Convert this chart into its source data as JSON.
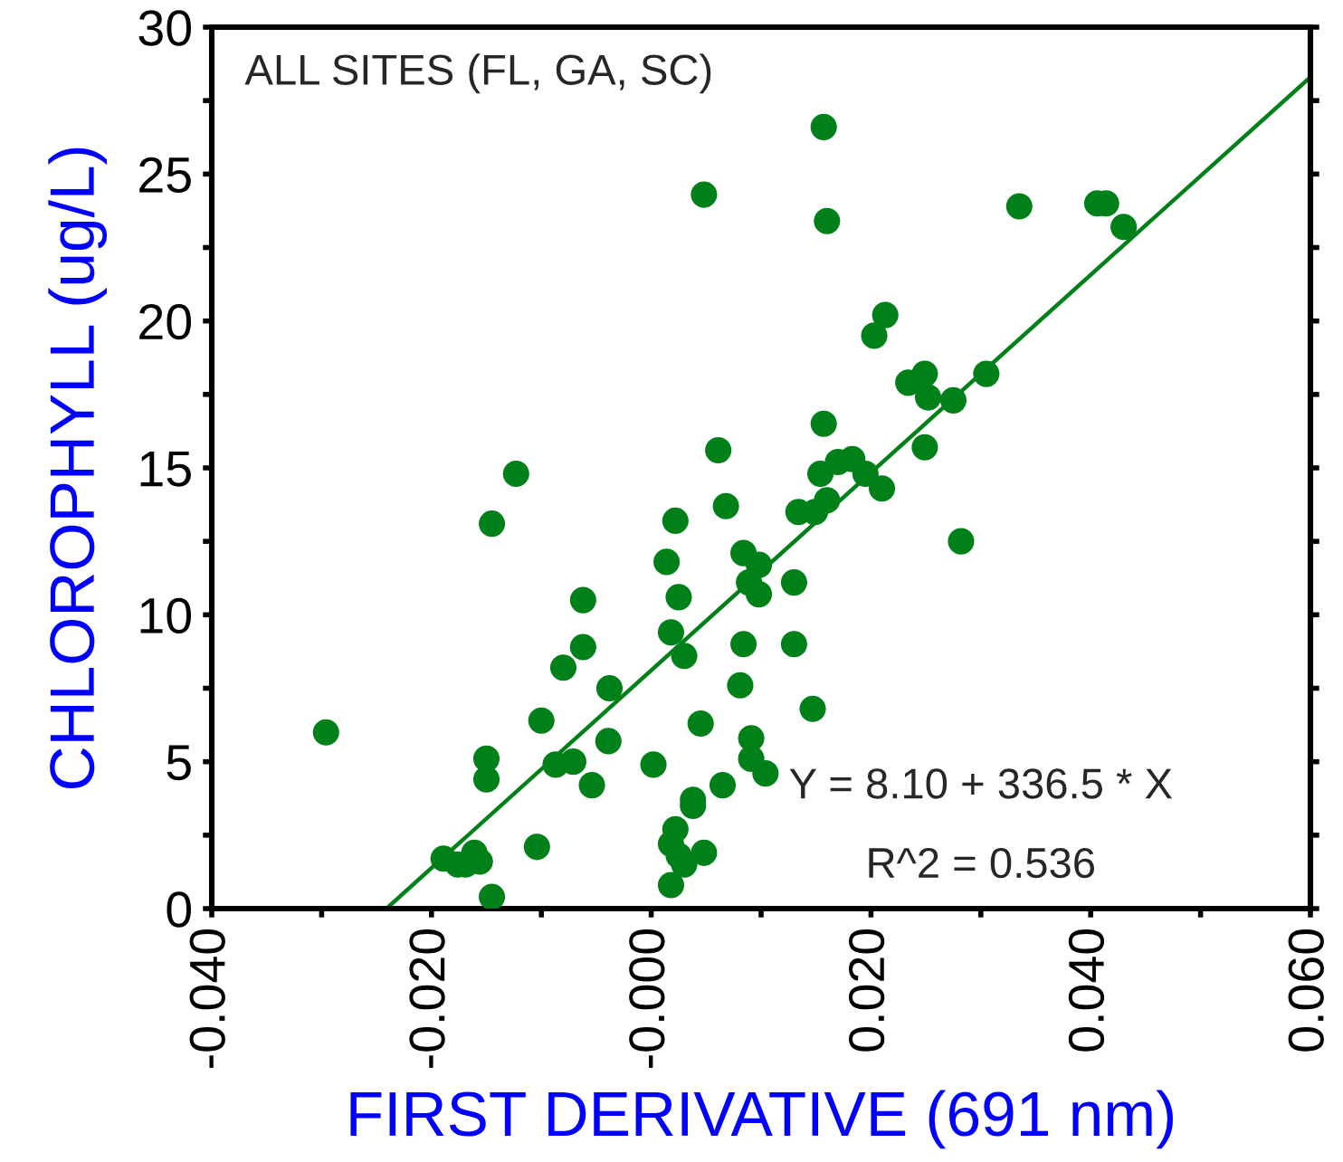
{
  "chart_data": {
    "type": "scatter",
    "xlabel": "FIRST DERIVATIVE (691 nm)",
    "ylabel": "CHLOROPHYLL (ug/L)",
    "annotations": [
      "ALL SITES (FL, GA, SC)",
      "Y = 8.10 + 336.5 * X",
      "R^2 = 0.536"
    ],
    "xlim": [
      -0.04,
      0.06
    ],
    "ylim": [
      0,
      30
    ],
    "xticks": [
      {
        "value": -0.04,
        "label": "-0.040"
      },
      {
        "value": -0.03,
        "label": null
      },
      {
        "value": -0.02,
        "label": "-0.020"
      },
      {
        "value": -0.01,
        "label": null
      },
      {
        "value": 0,
        "label": "-0.000"
      },
      {
        "value": 0.01,
        "label": null
      },
      {
        "value": 0.02,
        "label": "0.020"
      },
      {
        "value": 0.03,
        "label": null
      },
      {
        "value": 0.04,
        "label": "0.040"
      },
      {
        "value": 0.05,
        "label": null
      },
      {
        "value": 0.06,
        "label": "0.060"
      }
    ],
    "yticks": [
      0,
      {
        "value": 2.5,
        "label": null
      },
      5,
      {
        "value": 7.5,
        "label": null
      },
      10,
      {
        "value": 12.5,
        "label": null
      },
      15,
      {
        "value": 17.5,
        "label": null
      },
      20,
      {
        "value": 22.5,
        "label": null
      },
      25,
      {
        "value": 27.5,
        "label": null
      },
      30
    ],
    "grid": false,
    "legend": false,
    "series": [
      {
        "marker": "circle",
        "color": "#008018",
        "x": [
          -0.0123,
          -0.0145,
          -0.0062,
          -0.0062,
          -0.008,
          -0.0038,
          -0.01,
          -0.0296,
          -0.015,
          -0.015,
          -0.0087,
          -0.0071,
          -0.0039,
          -0.0054,
          -0.0104,
          -0.0189,
          -0.0176,
          -0.0169,
          -0.0161,
          -0.0156,
          -0.0145,
          0.0002,
          0.0014,
          0.0022,
          0.0025,
          0.0018,
          0.003,
          0.0068,
          0.0061,
          0.0045,
          0.0065,
          0.0038,
          0.0038,
          0.0022,
          0.0018,
          0.0025,
          0.003,
          0.0048,
          0.0018,
          0.0084,
          0.0098,
          0.0089,
          0.0098,
          0.0084,
          0.0081,
          0.0091,
          0.0091,
          0.0104,
          0.0048,
          0.0157,
          0.016,
          0.0335,
          0.0406,
          0.0414,
          0.043,
          0.0213,
          0.0203,
          0.0234,
          0.0249,
          0.0252,
          0.0275,
          0.0305,
          0.0157,
          0.0249,
          0.0154,
          0.017,
          0.0183,
          0.0195,
          0.021,
          0.0134,
          0.0149,
          0.016,
          0.013,
          0.013,
          0.0147,
          0.0282
        ],
        "values": [
          14.8,
          13.1,
          10.5,
          8.9,
          8.2,
          7.5,
          6.4,
          6.0,
          5.1,
          4.4,
          4.9,
          5.0,
          5.7,
          4.2,
          2.1,
          1.7,
          1.5,
          1.5,
          1.9,
          1.6,
          0.4,
          4.9,
          11.8,
          13.2,
          10.6,
          9.4,
          8.6,
          13.7,
          15.6,
          6.3,
          4.2,
          3.7,
          3.5,
          2.7,
          2.2,
          1.8,
          1.5,
          1.9,
          0.8,
          12.1,
          11.7,
          11.1,
          10.7,
          9.0,
          7.6,
          5.8,
          5.1,
          4.6,
          24.3,
          26.6,
          23.4,
          23.9,
          24.0,
          24.0,
          23.2,
          20.2,
          19.5,
          17.9,
          18.2,
          17.4,
          17.3,
          18.2,
          16.5,
          15.7,
          14.8,
          15.2,
          15.3,
          14.8,
          14.3,
          13.5,
          13.5,
          13.9,
          11.1,
          9.0,
          6.8,
          12.5
        ]
      },
      {
        "type": "line",
        "color": "#008018",
        "x": [
          -0.0241,
          0.06
        ],
        "values": [
          0,
          28.3
        ]
      }
    ]
  }
}
